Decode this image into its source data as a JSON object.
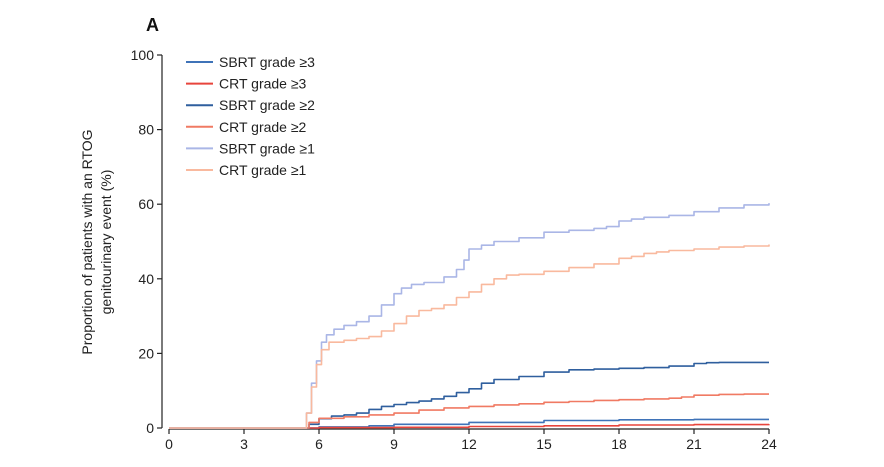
{
  "panel_label": "A",
  "chart_data": {
    "type": "line",
    "step": true,
    "ylabel_lines": [
      "Proportion of patients with an RTOG",
      "genitourinary event (%)"
    ],
    "xlabel": "",
    "xlim": [
      0,
      24
    ],
    "ylim": [
      0,
      100
    ],
    "xticks": [
      0,
      3,
      6,
      9,
      12,
      15,
      18,
      21,
      24
    ],
    "yticks": [
      0,
      20,
      40,
      60,
      80,
      100
    ],
    "grid": false,
    "legend_position": "top-left",
    "series": [
      {
        "name": "SBRT grade ≥3",
        "color": "#3f73b8",
        "x": [
          0,
          5.5,
          6,
          8,
          9,
          12,
          15,
          18,
          21,
          24
        ],
        "y": [
          0,
          0,
          0.3,
          0.6,
          1,
          1.5,
          2,
          2.2,
          2.3,
          2.3
        ]
      },
      {
        "name": "CRT grade ≥3",
        "color": "#e8453c",
        "x": [
          0,
          5.5,
          6,
          9,
          12,
          15,
          18,
          21,
          24
        ],
        "y": [
          0,
          0,
          0.1,
          0.2,
          0.4,
          0.6,
          0.8,
          0.9,
          1
        ]
      },
      {
        "name": "SBRT grade ≥2",
        "color": "#2f5f9e",
        "x": [
          0,
          5.3,
          5.6,
          6,
          6.5,
          7,
          7.5,
          8,
          8.5,
          9,
          9.5,
          10,
          10.5,
          11,
          11.5,
          12,
          12.5,
          13,
          14,
          15,
          16,
          17,
          18,
          19,
          20,
          21,
          21.5,
          22,
          23,
          24
        ],
        "y": [
          0,
          0,
          1,
          2.5,
          3.2,
          3.5,
          4,
          5,
          5.8,
          6.3,
          6.8,
          7.2,
          7.8,
          8.5,
          9.5,
          10.5,
          12,
          13,
          13.8,
          15,
          15.6,
          15.8,
          16,
          16.2,
          16.6,
          17.3,
          17.5,
          17.6,
          17.6,
          17.6
        ]
      },
      {
        "name": "CRT grade ≥2",
        "color": "#f07a63",
        "x": [
          0,
          5.3,
          5.6,
          6,
          7,
          8,
          9,
          10,
          11,
          12,
          13,
          14,
          15,
          16,
          17,
          18,
          19,
          20,
          20.5,
          21,
          22,
          23,
          24
        ],
        "y": [
          0,
          0,
          1.5,
          2.6,
          3,
          3.5,
          4,
          4.8,
          5.4,
          5.8,
          6.2,
          6.5,
          6.9,
          7.1,
          7.4,
          7.6,
          7.8,
          8,
          8.3,
          8.8,
          9,
          9.1,
          9.1
        ]
      },
      {
        "name": "SBRT grade ≥1",
        "color": "#aab6e6",
        "x": [
          0,
          5.3,
          5.5,
          5.7,
          5.9,
          6.1,
          6.3,
          6.6,
          7,
          7.5,
          8,
          8.5,
          9,
          9.3,
          9.7,
          10.2,
          11,
          11.5,
          11.8,
          12,
          12.5,
          13,
          14,
          15,
          16,
          17,
          17.5,
          18,
          18.5,
          19,
          20,
          21,
          22,
          23,
          24
        ],
        "y": [
          0,
          0,
          4,
          12,
          18,
          23,
          25,
          26.5,
          27.5,
          28.5,
          30,
          33,
          36,
          37.5,
          38.5,
          39,
          40.5,
          42.5,
          45,
          48,
          49,
          50,
          51,
          52.5,
          53,
          53.5,
          54,
          55.5,
          56,
          56.5,
          57,
          58,
          59,
          59.8,
          60.3
        ]
      },
      {
        "name": "CRT grade ≥1",
        "color": "#f9b99e",
        "x": [
          0,
          5.3,
          5.5,
          5.7,
          5.9,
          6.1,
          6.4,
          7,
          7.5,
          8,
          8.5,
          9,
          9.5,
          10,
          10.5,
          11,
          11.5,
          12,
          12.5,
          13,
          13.5,
          14,
          15,
          16,
          17,
          18,
          18.5,
          19,
          19.5,
          20,
          21,
          22,
          23,
          24
        ],
        "y": [
          0,
          0,
          4,
          11,
          17,
          21,
          23,
          23.5,
          24,
          24.5,
          26,
          28,
          30,
          31.5,
          32,
          33,
          35,
          36.5,
          38.5,
          40,
          41,
          41.2,
          42,
          43,
          44,
          45.5,
          46,
          46.8,
          47.2,
          47.6,
          48,
          48.5,
          48.8,
          49.2
        ]
      }
    ]
  }
}
